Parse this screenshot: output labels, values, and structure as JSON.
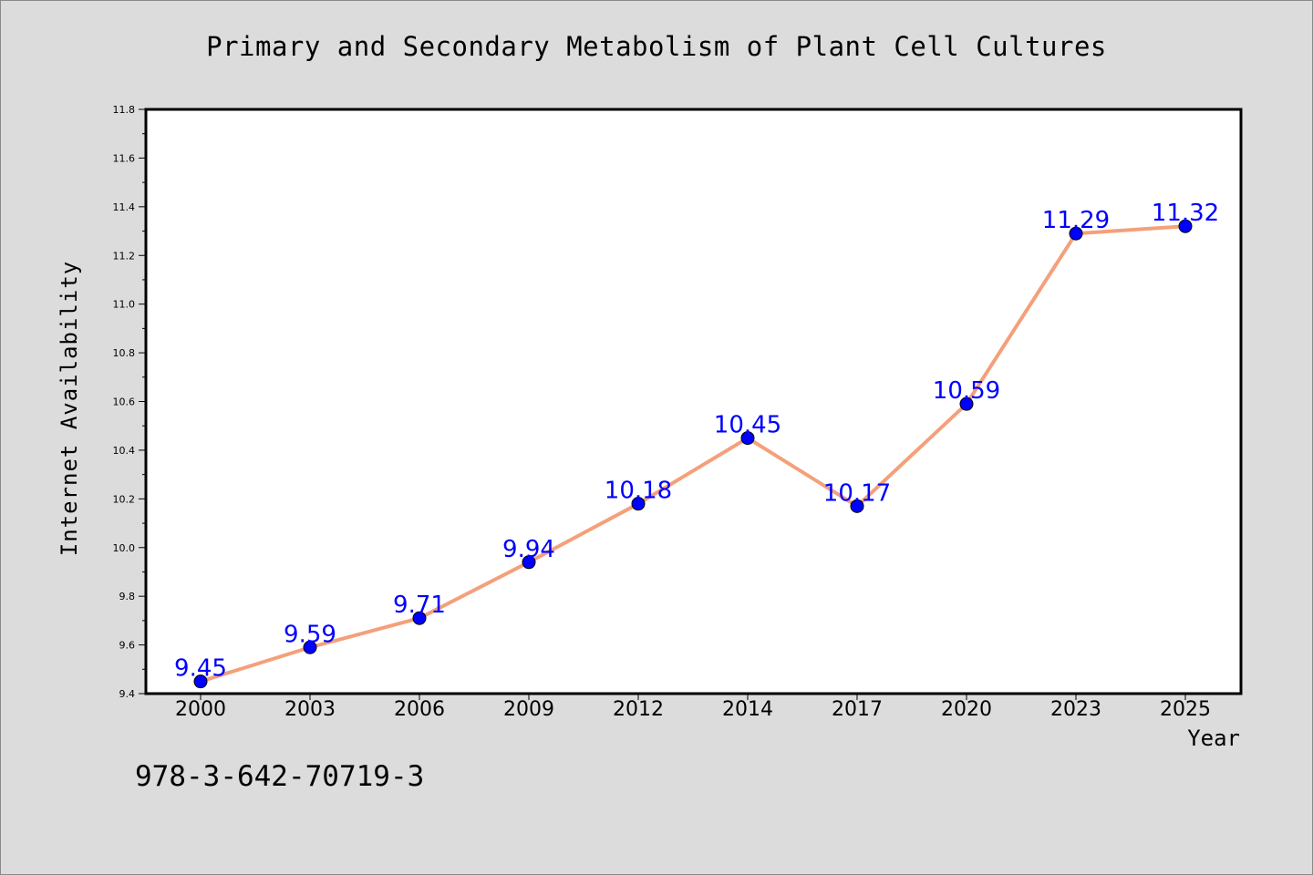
{
  "chart_data": {
    "type": "line",
    "title": "Primary and Secondary Metabolism of Plant Cell Cultures",
    "xlabel": "Year",
    "ylabel": "Internet Availability",
    "categories": [
      "2000",
      "2003",
      "2006",
      "2009",
      "2012",
      "2014",
      "2017",
      "2020",
      "2023",
      "2025"
    ],
    "series": [
      {
        "values": [
          9.45,
          9.59,
          9.71,
          9.94,
          10.18,
          10.45,
          10.17,
          10.59,
          11.29,
          11.32
        ],
        "data_labels": [
          "9.45",
          "9.59",
          "9.71",
          "9.94",
          "10.18",
          "10.45",
          "10.17",
          "10.59",
          "11.29",
          "11.32"
        ],
        "line_color": "#f4a07a",
        "marker_color": "#0000ff",
        "label_color": "#0000ff"
      }
    ],
    "ylim": [
      9.4,
      11.8
    ],
    "yticks": [
      "9.4",
      "9.6",
      "9.8",
      "10.0",
      "10.2",
      "10.4",
      "10.6",
      "10.8",
      "11.0",
      "11.2",
      "11.4",
      "11.6",
      "11.8"
    ],
    "grid": false,
    "legend": "none"
  },
  "footer": {
    "isbn": "978-3-642-70719-3"
  },
  "colors": {
    "background": "#dcdcdc",
    "plot_background": "#ffffff"
  }
}
